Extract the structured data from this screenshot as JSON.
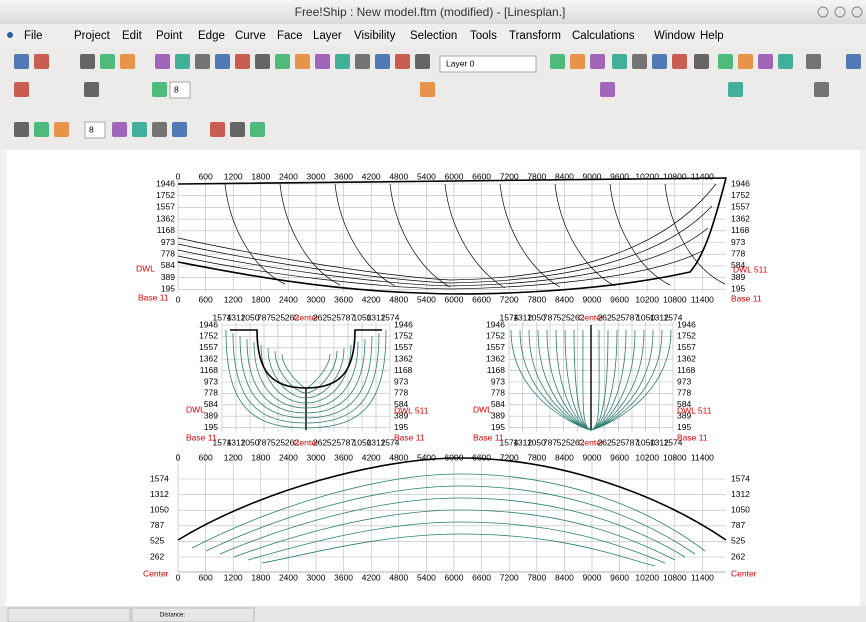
{
  "window": {
    "title": "Free!Ship : New model.ftm (modified) - [Linesplan.]"
  },
  "menu": [
    "File",
    "Project",
    "Edit",
    "Point",
    "Edge",
    "Curve",
    "Face",
    "Layer",
    "Visibility",
    "Selection",
    "Tools",
    "Transform",
    "Calculations",
    "Window",
    "Help"
  ],
  "toolbar": {
    "layer": "Layer 0",
    "spin_curve": "8",
    "spin_zoom": "8"
  },
  "drawing": {
    "length_labels": [
      "0",
      "600",
      "1200",
      "1800",
      "2400",
      "3000",
      "3600",
      "4200",
      "4800",
      "5400",
      "6000",
      "6600",
      "7200",
      "7800",
      "8400",
      "9000",
      "9600",
      "10200",
      "10800",
      "11400"
    ],
    "height_labels": [
      "1946",
      "1752",
      "1557",
      "1362",
      "1168",
      "973",
      "778",
      "584",
      "389",
      "195"
    ],
    "dwl": "DWL",
    "dwl_right": "DWL 511",
    "base": "Base 11",
    "body_labels": [
      "1574",
      "1312",
      "1050",
      "787",
      "525",
      "262",
      "Center",
      "262",
      "525",
      "787",
      "1050",
      "1312",
      "1574"
    ],
    "half_breadth_labels": [
      "1574",
      "1312",
      "1050",
      "787",
      "525",
      "262"
    ],
    "center": "Center"
  },
  "status": {
    "distance": "Distance:"
  }
}
